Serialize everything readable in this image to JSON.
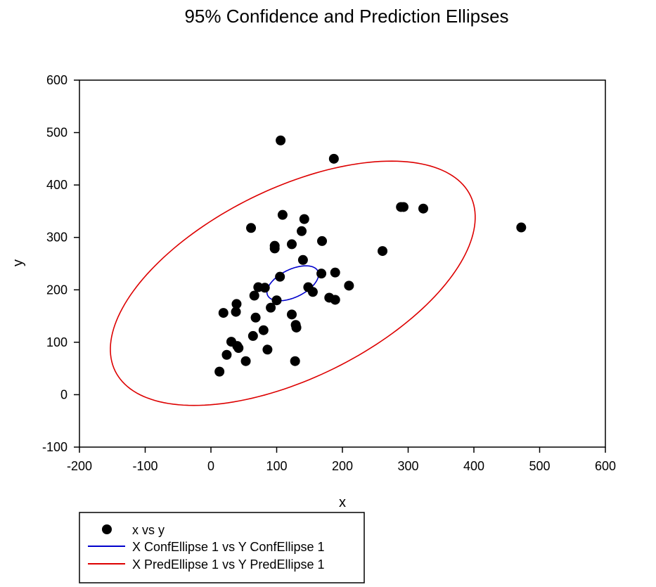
{
  "chart_data": {
    "type": "scatter",
    "title": "95% Confidence and Prediction Ellipses",
    "xlabel": "x",
    "ylabel": "y",
    "xlim": [
      -200,
      600
    ],
    "ylim": [
      -100,
      600
    ],
    "x_ticks": [
      -200,
      -100,
      0,
      100,
      200,
      300,
      400,
      500,
      600
    ],
    "y_ticks": [
      -100,
      0,
      100,
      200,
      300,
      400,
      500,
      600
    ],
    "grid": false,
    "legend_position": "bottom-left",
    "series": [
      {
        "name": "x vs y",
        "kind": "points",
        "color": "#000000",
        "points": [
          [
            106,
            485
          ],
          [
            187,
            450
          ],
          [
            109,
            343
          ],
          [
            142,
            335
          ],
          [
            61,
            318
          ],
          [
            289,
            358
          ],
          [
            293,
            358
          ],
          [
            323,
            355
          ],
          [
            472,
            319
          ],
          [
            138,
            312
          ],
          [
            169,
            293
          ],
          [
            123,
            287
          ],
          [
            97,
            284
          ],
          [
            97,
            279
          ],
          [
            261,
            274
          ],
          [
            140,
            257
          ],
          [
            168,
            231
          ],
          [
            189,
            233
          ],
          [
            105,
            225
          ],
          [
            210,
            208
          ],
          [
            72,
            205
          ],
          [
            82,
            204
          ],
          [
            148,
            205
          ],
          [
            155,
            196
          ],
          [
            66,
            189
          ],
          [
            180,
            185
          ],
          [
            189,
            181
          ],
          [
            100,
            180
          ],
          [
            39,
            173
          ],
          [
            19,
            156
          ],
          [
            38,
            158
          ],
          [
            91,
            166
          ],
          [
            123,
            153
          ],
          [
            68,
            147
          ],
          [
            129,
            133
          ],
          [
            130,
            128
          ],
          [
            80,
            123
          ],
          [
            64,
            112
          ],
          [
            31,
            101
          ],
          [
            40,
            93
          ],
          [
            42,
            89
          ],
          [
            86,
            86
          ],
          [
            24,
            76
          ],
          [
            53,
            64
          ],
          [
            128,
            64
          ],
          [
            13,
            44
          ]
        ]
      },
      {
        "name": "X ConfEllipse 1 vs Y ConfEllipse 1",
        "kind": "ellipse",
        "color": "#0000cc",
        "center": [
          124.5,
          212.5
        ],
        "semi_axes": [
          45,
          25
        ],
        "angle_deg": 36
      },
      {
        "name": "X PredEllipse 1 vs Y PredEllipse 1",
        "kind": "ellipse",
        "color": "#dd0000",
        "center": [
          124.5,
          212.5
        ],
        "semi_axes": [
          320,
          170
        ],
        "angle_deg": 36
      }
    ]
  }
}
